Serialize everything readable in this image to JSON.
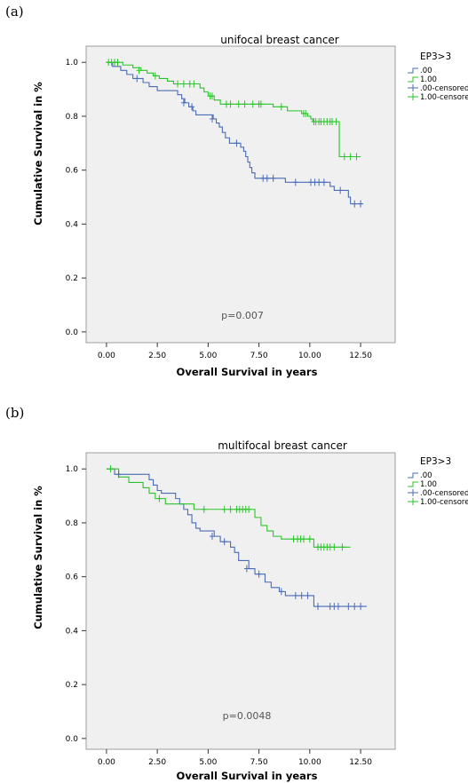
{
  "colors": {
    "series0": "#4a6bb5",
    "series1": "#2ac42a",
    "plot_bg": "#f0f0f0",
    "axis": "#333333"
  },
  "chart_data": [
    {
      "panel_label": "(a)",
      "type": "line",
      "title": "unifocal breast cancer",
      "xlabel": "Overall Survival in years",
      "ylabel": "Cumulative Survival in %",
      "annotation": "p=0.007",
      "xlim": [
        -1.0,
        14.2
      ],
      "ylim": [
        -0.04,
        1.06
      ],
      "xticks": [
        "0.00",
        "2.50",
        "5.00",
        "7.50",
        "10.00",
        "12.50"
      ],
      "yticks": [
        "0.0",
        "0.2",
        "0.4",
        "0.6",
        "0.8",
        "1.0"
      ],
      "legend_title": "EP3>3",
      "legend_labels": [
        ".00",
        "1.00",
        ".00-censored",
        "1.00-censored"
      ],
      "legend_position": "right",
      "series": [
        {
          "name": ".00",
          "steps": [
            [
              0,
              1.0
            ],
            [
              0.3,
              0.985
            ],
            [
              0.7,
              0.97
            ],
            [
              1.0,
              0.955
            ],
            [
              1.3,
              0.94
            ],
            [
              1.8,
              0.925
            ],
            [
              2.1,
              0.91
            ],
            [
              2.5,
              0.895
            ],
            [
              3.5,
              0.88
            ],
            [
              3.7,
              0.865
            ],
            [
              3.85,
              0.85
            ],
            [
              4.05,
              0.835
            ],
            [
              4.25,
              0.82
            ],
            [
              4.4,
              0.805
            ],
            [
              5.25,
              0.79
            ],
            [
              5.4,
              0.775
            ],
            [
              5.55,
              0.76
            ],
            [
              5.7,
              0.74
            ],
            [
              5.85,
              0.72
            ],
            [
              6.05,
              0.7
            ],
            [
              6.6,
              0.685
            ],
            [
              6.75,
              0.67
            ],
            [
              6.85,
              0.65
            ],
            [
              6.95,
              0.63
            ],
            [
              7.05,
              0.61
            ],
            [
              7.15,
              0.59
            ],
            [
              7.3,
              0.57
            ],
            [
              8.8,
              0.555
            ],
            [
              11.0,
              0.54
            ],
            [
              11.2,
              0.525
            ],
            [
              11.9,
              0.5
            ],
            [
              12.0,
              0.475
            ]
          ],
          "end": 12.6,
          "censored": [
            [
              1.5,
              0.94
            ],
            [
              3.8,
              0.85
            ],
            [
              4.2,
              0.835
            ],
            [
              5.2,
              0.79
            ],
            [
              6.4,
              0.7
            ],
            [
              7.7,
              0.57
            ],
            [
              7.9,
              0.57
            ],
            [
              8.2,
              0.57
            ],
            [
              9.3,
              0.555
            ],
            [
              10.05,
              0.555
            ],
            [
              10.25,
              0.555
            ],
            [
              10.45,
              0.555
            ],
            [
              10.7,
              0.555
            ],
            [
              11.5,
              0.525
            ],
            [
              12.2,
              0.475
            ],
            [
              12.5,
              0.475
            ]
          ]
        },
        {
          "name": "1.00",
          "steps": [
            [
              0,
              1.0
            ],
            [
              0.8,
              0.99
            ],
            [
              1.3,
              0.98
            ],
            [
              1.7,
              0.97
            ],
            [
              2.0,
              0.96
            ],
            [
              2.3,
              0.95
            ],
            [
              2.6,
              0.94
            ],
            [
              3.0,
              0.93
            ],
            [
              3.3,
              0.92
            ],
            [
              4.6,
              0.905
            ],
            [
              4.8,
              0.89
            ],
            [
              5.0,
              0.875
            ],
            [
              5.3,
              0.86
            ],
            [
              5.6,
              0.845
            ],
            [
              8.2,
              0.835
            ],
            [
              8.9,
              0.82
            ],
            [
              9.6,
              0.81
            ],
            [
              9.9,
              0.8
            ],
            [
              10.05,
              0.79
            ],
            [
              10.15,
              0.78
            ],
            [
              11.45,
              0.65
            ]
          ],
          "end": 12.5,
          "censored": [
            [
              0.1,
              1.0
            ],
            [
              0.25,
              1.0
            ],
            [
              0.4,
              1.0
            ],
            [
              0.55,
              1.0
            ],
            [
              1.6,
              0.97
            ],
            [
              2.4,
              0.95
            ],
            [
              3.5,
              0.92
            ],
            [
              3.8,
              0.92
            ],
            [
              4.1,
              0.92
            ],
            [
              4.3,
              0.92
            ],
            [
              5.1,
              0.875
            ],
            [
              5.2,
              0.875
            ],
            [
              5.9,
              0.845
            ],
            [
              6.1,
              0.845
            ],
            [
              6.5,
              0.845
            ],
            [
              6.8,
              0.845
            ],
            [
              7.2,
              0.845
            ],
            [
              7.5,
              0.845
            ],
            [
              7.6,
              0.845
            ],
            [
              8.6,
              0.835
            ],
            [
              9.7,
              0.81
            ],
            [
              9.8,
              0.81
            ],
            [
              10.2,
              0.78
            ],
            [
              10.3,
              0.78
            ],
            [
              10.45,
              0.78
            ],
            [
              10.55,
              0.78
            ],
            [
              10.7,
              0.78
            ],
            [
              10.85,
              0.78
            ],
            [
              11.0,
              0.78
            ],
            [
              11.1,
              0.78
            ],
            [
              11.3,
              0.78
            ],
            [
              11.7,
              0.65
            ],
            [
              12.0,
              0.65
            ],
            [
              12.3,
              0.65
            ]
          ]
        }
      ]
    },
    {
      "panel_label": "(b)",
      "type": "line",
      "title": "multifocal breast cancer",
      "xlabel": "Overall Survival in years",
      "ylabel": "Cumulative Survival in %",
      "annotation": "p=0.0048",
      "xlim": [
        -1.0,
        14.2
      ],
      "ylim": [
        -0.04,
        1.06
      ],
      "xticks": [
        "0.00",
        "2.50",
        "5.00",
        "7.50",
        "10.00",
        "12.50"
      ],
      "yticks": [
        "0.0",
        "0.2",
        "0.4",
        "0.6",
        "0.8",
        "1.0"
      ],
      "legend_title": "EP3>3",
      "legend_labels": [
        ".00",
        "1.00",
        ".00-censored",
        "1.00-censored"
      ],
      "legend_position": "right",
      "series": [
        {
          "name": ".00",
          "steps": [
            [
              0,
              1.0
            ],
            [
              0.4,
              0.98
            ],
            [
              2.1,
              0.96
            ],
            [
              2.3,
              0.94
            ],
            [
              2.5,
              0.92
            ],
            [
              2.7,
              0.91
            ],
            [
              3.4,
              0.89
            ],
            [
              3.6,
              0.87
            ],
            [
              3.8,
              0.85
            ],
            [
              4.0,
              0.83
            ],
            [
              4.2,
              0.8
            ],
            [
              4.4,
              0.78
            ],
            [
              4.6,
              0.77
            ],
            [
              5.3,
              0.75
            ],
            [
              5.6,
              0.73
            ],
            [
              6.1,
              0.71
            ],
            [
              6.3,
              0.69
            ],
            [
              6.5,
              0.66
            ],
            [
              7.0,
              0.63
            ],
            [
              7.3,
              0.61
            ],
            [
              7.8,
              0.58
            ],
            [
              8.1,
              0.56
            ],
            [
              8.5,
              0.545
            ],
            [
              8.8,
              0.53
            ],
            [
              10.2,
              0.49
            ]
          ],
          "end": 12.8,
          "censored": [
            [
              0.6,
              0.98
            ],
            [
              5.2,
              0.75
            ],
            [
              5.8,
              0.73
            ],
            [
              6.9,
              0.63
            ],
            [
              7.5,
              0.61
            ],
            [
              8.6,
              0.545
            ],
            [
              9.3,
              0.53
            ],
            [
              9.6,
              0.53
            ],
            [
              9.9,
              0.53
            ],
            [
              10.4,
              0.49
            ],
            [
              11.0,
              0.49
            ],
            [
              11.2,
              0.49
            ],
            [
              11.4,
              0.49
            ],
            [
              11.9,
              0.49
            ],
            [
              12.2,
              0.49
            ],
            [
              12.5,
              0.49
            ]
          ]
        },
        {
          "name": "1.00",
          "steps": [
            [
              0,
              1.0
            ],
            [
              0.6,
              0.97
            ],
            [
              1.1,
              0.95
            ],
            [
              1.8,
              0.93
            ],
            [
              2.1,
              0.91
            ],
            [
              2.4,
              0.89
            ],
            [
              2.9,
              0.87
            ],
            [
              4.3,
              0.85
            ],
            [
              7.3,
              0.82
            ],
            [
              7.6,
              0.79
            ],
            [
              7.9,
              0.77
            ],
            [
              8.2,
              0.75
            ],
            [
              8.6,
              0.74
            ],
            [
              10.2,
              0.71
            ]
          ],
          "end": 12.0,
          "censored": [
            [
              0.2,
              1.0
            ],
            [
              2.6,
              0.89
            ],
            [
              4.8,
              0.85
            ],
            [
              5.8,
              0.85
            ],
            [
              6.1,
              0.85
            ],
            [
              6.4,
              0.85
            ],
            [
              6.55,
              0.85
            ],
            [
              6.7,
              0.85
            ],
            [
              6.85,
              0.85
            ],
            [
              7.0,
              0.85
            ],
            [
              9.2,
              0.74
            ],
            [
              9.4,
              0.74
            ],
            [
              9.55,
              0.74
            ],
            [
              9.7,
              0.74
            ],
            [
              10.0,
              0.74
            ],
            [
              10.4,
              0.71
            ],
            [
              10.55,
              0.71
            ],
            [
              10.7,
              0.71
            ],
            [
              10.85,
              0.71
            ],
            [
              11.0,
              0.71
            ],
            [
              11.2,
              0.71
            ],
            [
              11.6,
              0.71
            ]
          ]
        }
      ]
    }
  ]
}
